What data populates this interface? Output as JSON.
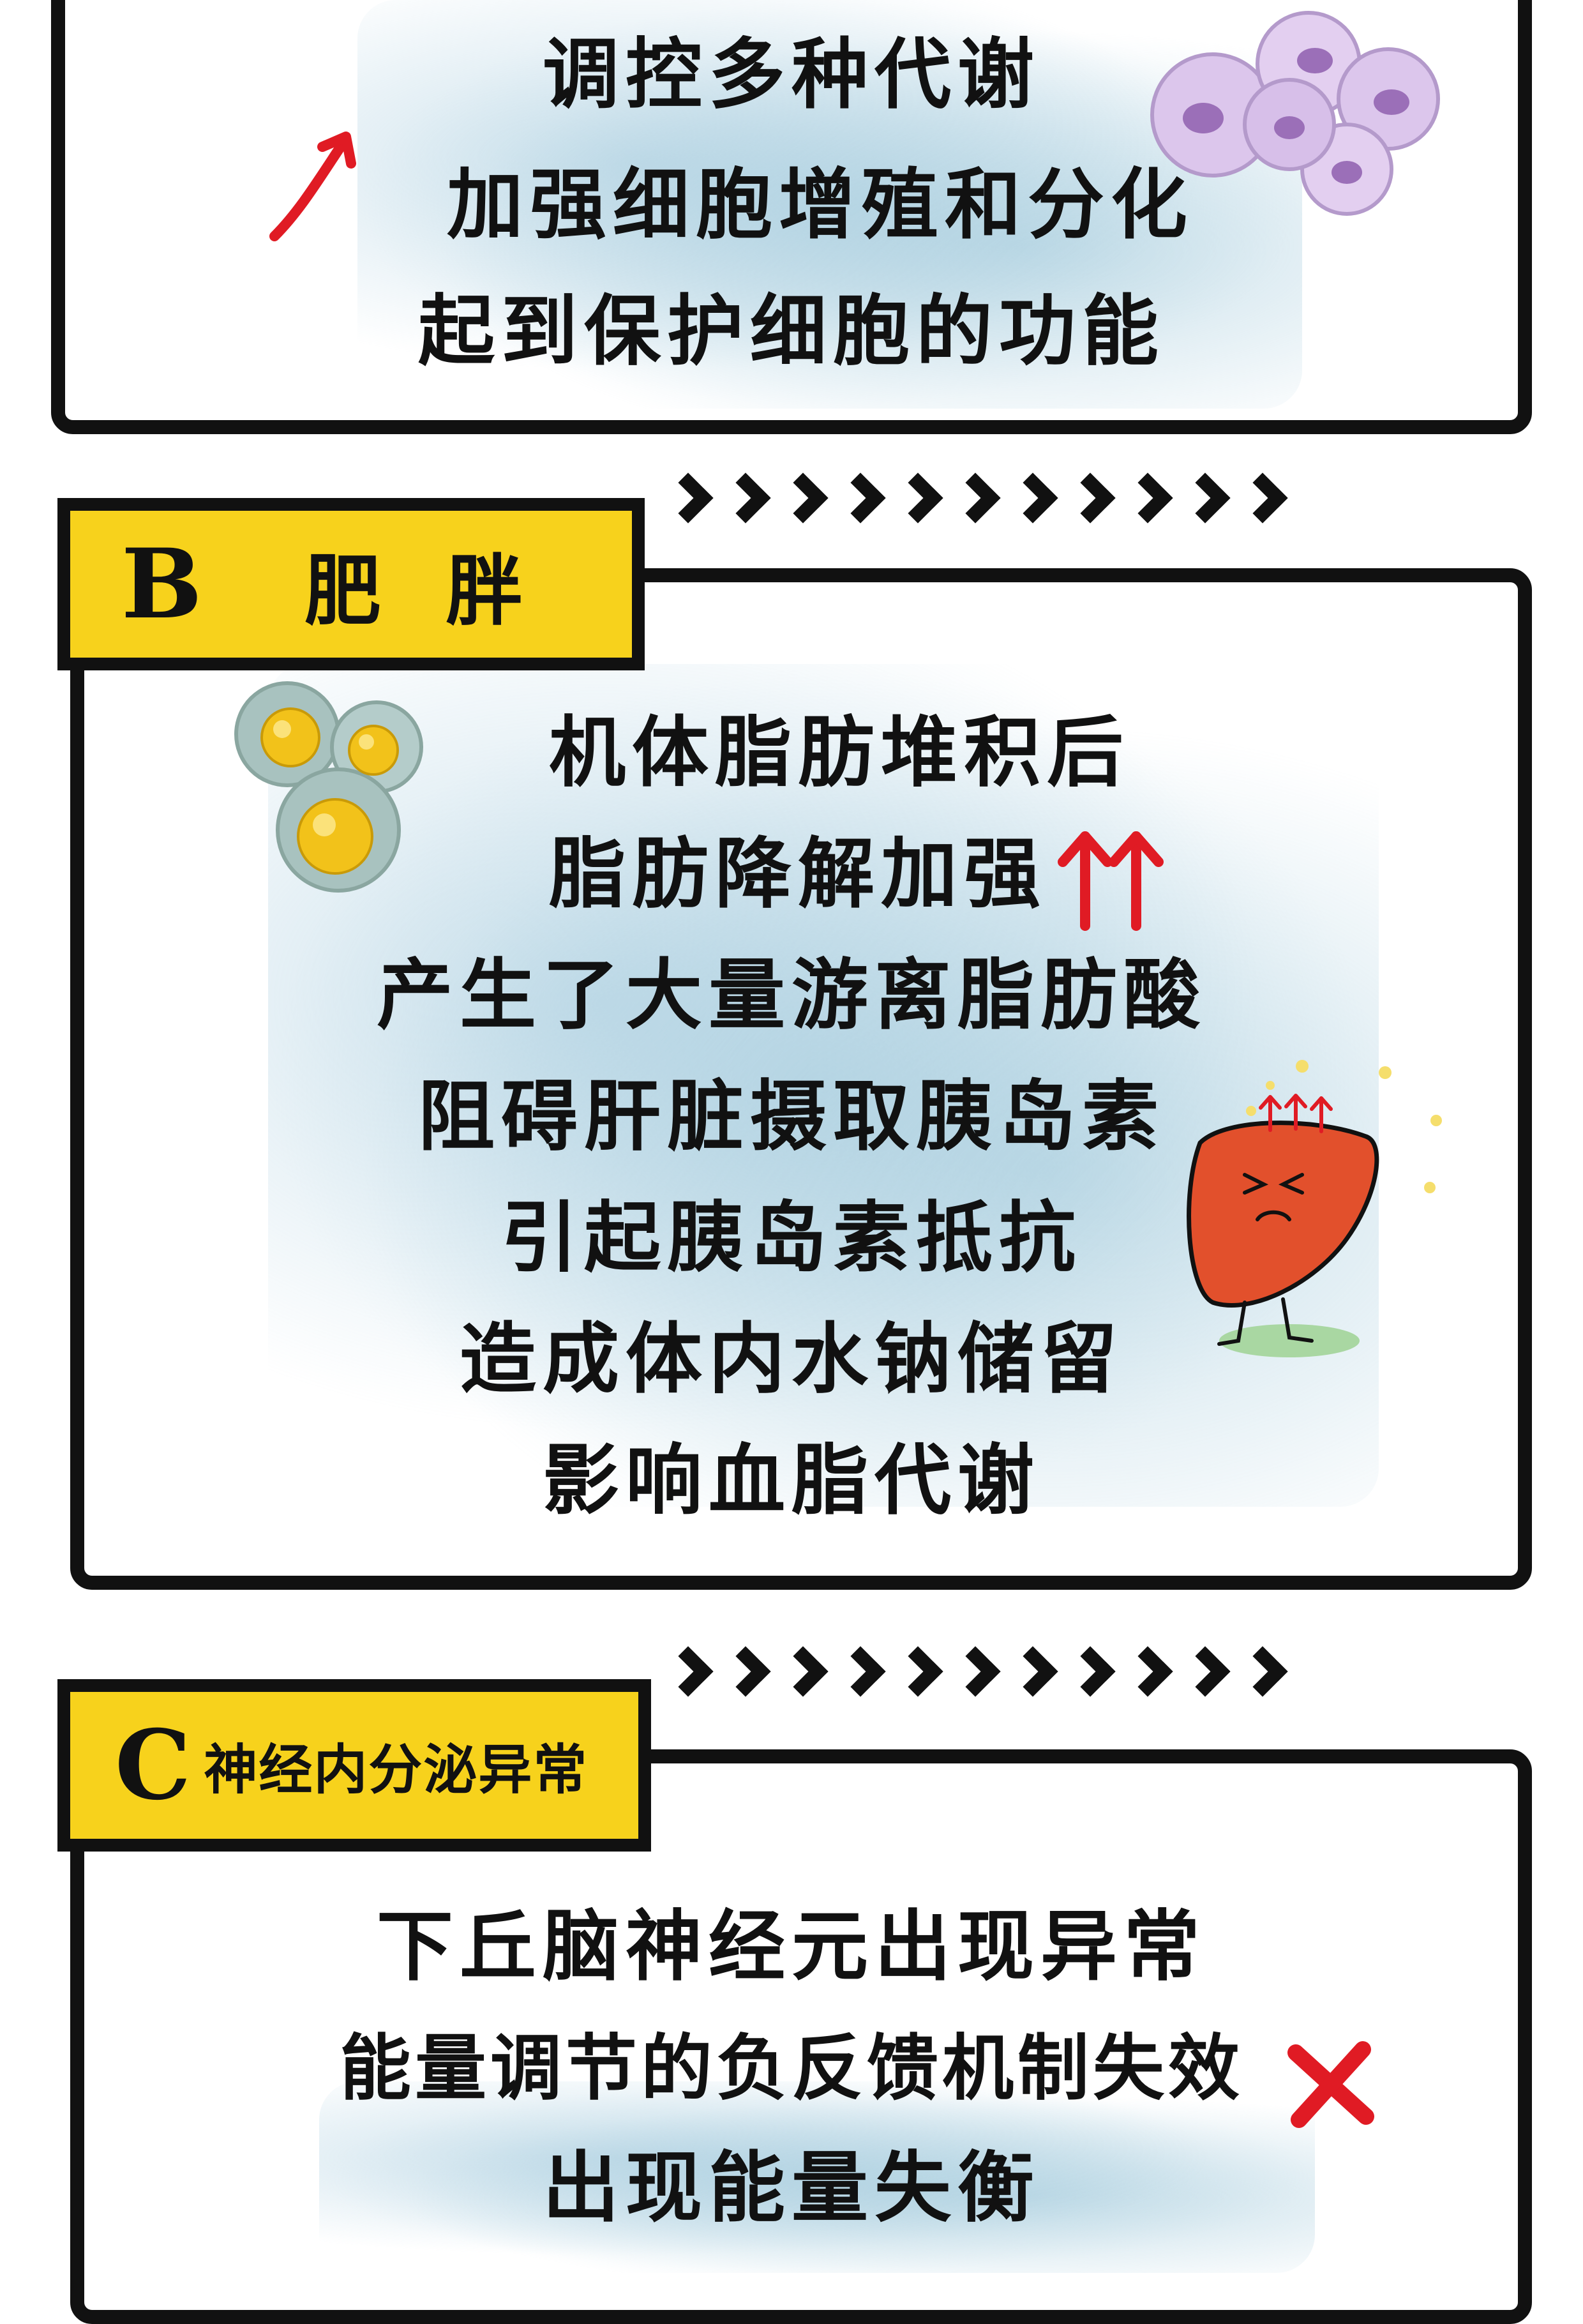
{
  "section_a": {
    "lines": [
      "调控多种代谢",
      "加强细胞增殖和分化",
      "起到保护细胞的功能"
    ]
  },
  "section_b": {
    "letter": "B",
    "title": "肥 胖",
    "lines": [
      "机体脂肪堆积后",
      "脂肪降解加强",
      "产生了大量游离脂肪酸",
      "阻碍肝脏摄取胰岛素",
      "引起胰岛素抵抗",
      "造成体内水钠储留",
      "影响血脂代谢"
    ]
  },
  "section_c": {
    "letter": "C",
    "title": "神经内分泌异常",
    "lines": [
      "下丘脑神经元出现异常",
      "能量调节的负反馈机制失效",
      "出现能量失衡"
    ]
  },
  "colors": {
    "frame": "#111111",
    "tab_bg": "#f7d21c",
    "accent_red": "#e01b24",
    "wash_blue": "#a8cde0",
    "cell_purple": "#d9c2ea",
    "fat_yellow": "#f2c21a",
    "liver_red": "#e2502c"
  },
  "icons": [
    "arrow-up-icon",
    "double-arrow-up-icon",
    "cross-icon",
    "cells-icon",
    "fat-cells-icon",
    "liver-icon",
    "chevron-right-icon"
  ]
}
